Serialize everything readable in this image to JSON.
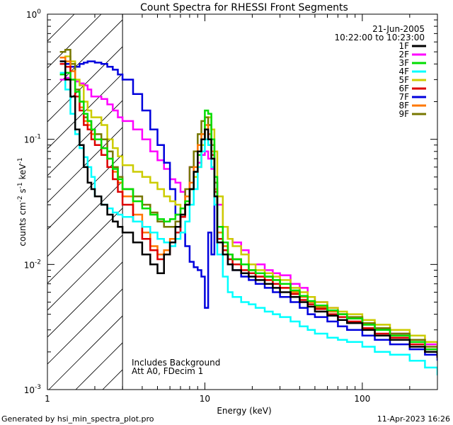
{
  "chart_data": {
    "type": "line",
    "title": "Count Spectra for RHESSI Front Segments",
    "xlabel": "Energy (keV)",
    "ylabel_main": "counts cm",
    "ylabel_sup1": "-2",
    "ylabel_mid": " s",
    "ylabel_sup2": "-1",
    "ylabel_mid2": " keV",
    "ylabel_sup3": "-1",
    "xscale": "log",
    "yscale": "log",
    "xlim": [
      1,
      300
    ],
    "ylim": [
      0.001,
      1
    ],
    "xticks": [
      {
        "value": 1,
        "label": "1"
      },
      {
        "value": 10,
        "label": "10"
      },
      {
        "value": 100,
        "label": "100"
      }
    ],
    "yticks": [
      {
        "value": 0.001,
        "base": "10",
        "exp": "-3"
      },
      {
        "value": 0.01,
        "base": "10",
        "exp": "-2"
      },
      {
        "value": 0.1,
        "base": "10",
        "exp": "-1"
      },
      {
        "value": 1,
        "base": "10",
        "exp": "0"
      }
    ],
    "date": "21-Jun-2005",
    "time_range": "10:22:00 to 10:23:00",
    "annotation_1": "Includes Background",
    "annotation_2": "Att A0, FDecim 1",
    "hatched_region_max_kev": 3,
    "legend": [
      {
        "name": "1F",
        "color": "#000000"
      },
      {
        "name": "2F",
        "color": "#ff00ff"
      },
      {
        "name": "3F",
        "color": "#00dd00"
      },
      {
        "name": "4F",
        "color": "#00ffff"
      },
      {
        "name": "5F",
        "color": "#cccc00"
      },
      {
        "name": "6F",
        "color": "#dd0000"
      },
      {
        "name": "7F",
        "color": "#0000dd"
      },
      {
        "name": "8F",
        "color": "#ff7700"
      },
      {
        "name": "9F",
        "color": "#777700"
      }
    ],
    "series": [
      {
        "name": "2F",
        "color": "#ff00ff",
        "x": [
          1.2,
          1.3,
          1.4,
          1.5,
          1.6,
          1.7,
          1.8,
          1.9,
          2.0,
          2.2,
          2.4,
          2.6,
          2.8,
          3.0,
          3.5,
          4,
          4.5,
          5,
          5.5,
          6,
          6.5,
          7,
          7.5,
          8,
          8.5,
          9,
          9.5,
          10,
          10.5,
          11,
          11.5,
          12,
          13,
          14,
          15,
          17,
          19,
          21,
          24,
          27,
          30,
          35,
          40,
          45,
          50,
          60,
          70,
          80,
          100,
          120,
          150,
          200,
          250,
          300
        ],
        "values": [
          0.3,
          0.31,
          0.3,
          0.29,
          0.28,
          0.27,
          0.25,
          0.22,
          0.22,
          0.21,
          0.19,
          0.17,
          0.15,
          0.14,
          0.12,
          0.1,
          0.08,
          0.068,
          0.058,
          0.048,
          0.045,
          0.038,
          0.035,
          0.06,
          0.05,
          0.065,
          0.075,
          0.08,
          0.07,
          0.058,
          0.045,
          0.03,
          0.02,
          0.016,
          0.015,
          0.013,
          0.01,
          0.01,
          0.009,
          0.0085,
          0.0082,
          0.007,
          0.0065,
          0.0055,
          0.005,
          0.0045,
          0.004,
          0.0037,
          0.0033,
          0.003,
          0.0028,
          0.0025,
          0.0023,
          0.002
        ]
      },
      {
        "name": "7F",
        "color": "#0000dd",
        "x": [
          1.2,
          1.3,
          1.4,
          1.5,
          1.6,
          1.7,
          1.8,
          1.9,
          2.0,
          2.2,
          2.4,
          2.6,
          2.8,
          3.0,
          3.5,
          4,
          4.5,
          5,
          5.5,
          6,
          6.5,
          7,
          7.5,
          8,
          8.5,
          9,
          9.5,
          10,
          10.5,
          11,
          11.5,
          12,
          13,
          14,
          15,
          17,
          19,
          21,
          24,
          27,
          30,
          35,
          40,
          45,
          50,
          60,
          70,
          80,
          100,
          120,
          150,
          200,
          250,
          300
        ],
        "values": [
          0.42,
          0.4,
          0.38,
          0.38,
          0.4,
          0.41,
          0.42,
          0.42,
          0.41,
          0.4,
          0.38,
          0.36,
          0.33,
          0.3,
          0.23,
          0.17,
          0.12,
          0.09,
          0.065,
          0.04,
          0.025,
          0.018,
          0.014,
          0.0105,
          0.0095,
          0.009,
          0.008,
          0.0045,
          0.018,
          0.012,
          0.035,
          0.015,
          0.012,
          0.01,
          0.009,
          0.008,
          0.0075,
          0.007,
          0.0065,
          0.006,
          0.0055,
          0.005,
          0.0045,
          0.004,
          0.0038,
          0.0035,
          0.0032,
          0.003,
          0.0027,
          0.0025,
          0.0023,
          0.0021,
          0.0019,
          0.0017
        ]
      },
      {
        "name": "5F",
        "color": "#cccc00",
        "x": [
          1.2,
          1.3,
          1.4,
          1.5,
          1.6,
          1.7,
          1.8,
          1.9,
          2.0,
          2.2,
          2.4,
          2.6,
          2.8,
          3.0,
          3.5,
          4,
          4.5,
          5,
          5.5,
          6,
          6.5,
          7,
          7.5,
          8,
          8.5,
          9,
          9.5,
          10,
          10.5,
          11,
          11.5,
          12,
          13,
          14,
          15,
          17,
          19,
          21,
          24,
          27,
          30,
          35,
          40,
          45,
          50,
          60,
          70,
          80,
          100,
          120,
          150,
          200,
          250,
          300
        ],
        "values": [
          0.45,
          0.46,
          0.42,
          0.3,
          0.27,
          0.2,
          0.17,
          0.15,
          0.15,
          0.13,
          0.1,
          0.085,
          0.073,
          0.062,
          0.055,
          0.05,
          0.045,
          0.04,
          0.035,
          0.032,
          0.03,
          0.028,
          0.035,
          0.04,
          0.05,
          0.06,
          0.09,
          0.12,
          0.15,
          0.12,
          0.08,
          0.035,
          0.02,
          0.016,
          0.014,
          0.012,
          0.01,
          0.009,
          0.0085,
          0.008,
          0.0075,
          0.0065,
          0.006,
          0.0055,
          0.005,
          0.0045,
          0.0042,
          0.004,
          0.0036,
          0.0033,
          0.003,
          0.0027,
          0.0024,
          0.0022
        ]
      },
      {
        "name": "9F",
        "color": "#777700",
        "x": [
          1.2,
          1.3,
          1.4,
          1.5,
          1.6,
          1.7,
          1.8,
          1.9,
          2.0,
          2.2,
          2.4,
          2.6,
          2.8,
          3.0,
          3.5,
          4,
          4.5,
          5,
          5.5,
          6,
          6.5,
          7,
          7.5,
          8,
          8.5,
          9,
          9.5,
          10,
          10.5,
          11,
          11.5,
          12,
          13,
          14,
          15,
          17,
          19,
          21,
          24,
          27,
          30,
          35,
          40,
          45,
          50,
          60,
          70,
          80,
          100,
          120,
          150,
          200,
          250,
          300
        ],
        "values": [
          0.5,
          0.52,
          0.4,
          0.25,
          0.2,
          0.15,
          0.14,
          0.12,
          0.11,
          0.1,
          0.08,
          0.06,
          0.05,
          0.04,
          0.035,
          0.03,
          0.026,
          0.022,
          0.02,
          0.02,
          0.022,
          0.025,
          0.04,
          0.06,
          0.08,
          0.11,
          0.14,
          0.15,
          0.13,
          0.09,
          0.045,
          0.02,
          0.015,
          0.012,
          0.011,
          0.01,
          0.009,
          0.0085,
          0.008,
          0.0075,
          0.007,
          0.006,
          0.0055,
          0.005,
          0.0045,
          0.0042,
          0.004,
          0.0038,
          0.0034,
          0.0031,
          0.0028,
          0.0025,
          0.0022,
          0.002
        ]
      },
      {
        "name": "8F",
        "color": "#ff7700",
        "x": [
          1.2,
          1.3,
          1.4,
          1.5,
          1.6,
          1.7,
          1.8,
          1.9,
          2.0,
          2.2,
          2.4,
          2.6,
          2.8,
          3.0,
          3.5,
          4,
          4.5,
          5,
          5.5,
          6,
          6.5,
          7,
          7.5,
          8,
          8.5,
          9,
          9.5,
          10,
          10.5,
          11,
          11.5,
          12,
          13,
          14,
          15,
          17,
          19,
          21,
          24,
          27,
          30,
          35,
          40,
          45,
          50,
          60,
          70,
          80,
          100,
          120,
          150,
          200,
          250,
          300
        ],
        "values": [
          0.45,
          0.42,
          0.35,
          0.22,
          0.18,
          0.14,
          0.13,
          0.11,
          0.1,
          0.085,
          0.07,
          0.055,
          0.045,
          0.035,
          0.025,
          0.018,
          0.014,
          0.012,
          0.013,
          0.016,
          0.02,
          0.028,
          0.035,
          0.045,
          0.06,
          0.09,
          0.11,
          0.13,
          0.11,
          0.08,
          0.04,
          0.018,
          0.014,
          0.012,
          0.011,
          0.01,
          0.009,
          0.008,
          0.0075,
          0.007,
          0.0065,
          0.006,
          0.0055,
          0.005,
          0.0046,
          0.0042,
          0.004,
          0.0037,
          0.0033,
          0.003,
          0.0027,
          0.0024,
          0.0021,
          0.0019
        ]
      },
      {
        "name": "6F",
        "color": "#dd0000",
        "x": [
          1.2,
          1.3,
          1.4,
          1.5,
          1.6,
          1.7,
          1.8,
          1.9,
          2.0,
          2.2,
          2.4,
          2.6,
          2.8,
          3.0,
          3.5,
          4,
          4.5,
          5,
          5.5,
          6,
          6.5,
          7,
          7.5,
          8,
          8.5,
          9,
          9.5,
          10,
          10.5,
          11,
          11.5,
          12,
          13,
          14,
          15,
          17,
          19,
          21,
          24,
          27,
          30,
          35,
          40,
          45,
          50,
          60,
          70,
          80,
          100,
          120,
          150,
          200,
          250,
          300
        ],
        "values": [
          0.4,
          0.38,
          0.3,
          0.22,
          0.17,
          0.13,
          0.12,
          0.1,
          0.09,
          0.075,
          0.06,
          0.048,
          0.038,
          0.03,
          0.022,
          0.016,
          0.013,
          0.011,
          0.012,
          0.015,
          0.018,
          0.024,
          0.03,
          0.04,
          0.055,
          0.08,
          0.1,
          0.12,
          0.1,
          0.075,
          0.038,
          0.016,
          0.013,
          0.011,
          0.01,
          0.009,
          0.0085,
          0.008,
          0.0075,
          0.007,
          0.0065,
          0.0058,
          0.0052,
          0.0048,
          0.0044,
          0.004,
          0.0038,
          0.0035,
          0.0031,
          0.0028,
          0.0026,
          0.0023,
          0.002,
          0.0018
        ]
      },
      {
        "name": "3F",
        "color": "#00dd00",
        "x": [
          1.2,
          1.3,
          1.4,
          1.5,
          1.6,
          1.7,
          1.8,
          1.9,
          2.0,
          2.2,
          2.4,
          2.6,
          2.8,
          3.0,
          3.5,
          4,
          4.5,
          5,
          5.5,
          6,
          6.5,
          7,
          7.5,
          8,
          8.5,
          9,
          9.5,
          10,
          10.5,
          11,
          11.5,
          12,
          13,
          14,
          15,
          17,
          19,
          21,
          24,
          27,
          30,
          35,
          40,
          45,
          50,
          60,
          70,
          80,
          100,
          120,
          150,
          200,
          250,
          300
        ],
        "values": [
          0.33,
          0.34,
          0.3,
          0.24,
          0.2,
          0.16,
          0.14,
          0.12,
          0.1,
          0.085,
          0.07,
          0.058,
          0.048,
          0.04,
          0.032,
          0.028,
          0.025,
          0.023,
          0.022,
          0.023,
          0.025,
          0.028,
          0.032,
          0.04,
          0.055,
          0.075,
          0.1,
          0.17,
          0.16,
          0.1,
          0.05,
          0.02,
          0.015,
          0.012,
          0.011,
          0.01,
          0.009,
          0.0085,
          0.008,
          0.0075,
          0.007,
          0.0062,
          0.0056,
          0.0051,
          0.0047,
          0.0043,
          0.004,
          0.0037,
          0.0033,
          0.003,
          0.0027,
          0.0024,
          0.0021,
          0.0019
        ]
      },
      {
        "name": "4F",
        "color": "#00ffff",
        "x": [
          1.2,
          1.3,
          1.4,
          1.5,
          1.6,
          1.7,
          1.8,
          1.9,
          2.0,
          2.2,
          2.4,
          2.6,
          2.8,
          3.0,
          3.5,
          4,
          4.5,
          5,
          5.5,
          6,
          6.5,
          7,
          7.5,
          8,
          8.5,
          9,
          9.5,
          10,
          10.5,
          11,
          11.5,
          12,
          13,
          14,
          15,
          17,
          19,
          21,
          24,
          27,
          30,
          35,
          40,
          45,
          50,
          60,
          70,
          80,
          100,
          120,
          150,
          200,
          250,
          300
        ],
        "values": [
          0.34,
          0.25,
          0.16,
          0.11,
          0.085,
          0.072,
          0.06,
          0.05,
          0.035,
          0.03,
          0.028,
          0.026,
          0.025,
          0.024,
          0.022,
          0.02,
          0.018,
          0.016,
          0.015,
          0.014,
          0.016,
          0.018,
          0.022,
          0.03,
          0.04,
          0.06,
          0.08,
          0.1,
          0.09,
          0.06,
          0.03,
          0.012,
          0.008,
          0.006,
          0.0055,
          0.005,
          0.0048,
          0.0045,
          0.0042,
          0.004,
          0.0038,
          0.0035,
          0.0032,
          0.003,
          0.0028,
          0.0026,
          0.0025,
          0.0024,
          0.0022,
          0.002,
          0.0019,
          0.0017,
          0.0015,
          0.0013
        ]
      },
      {
        "name": "1F",
        "color": "#000000",
        "x": [
          1.2,
          1.3,
          1.4,
          1.5,
          1.6,
          1.7,
          1.8,
          1.9,
          2.0,
          2.2,
          2.4,
          2.6,
          2.8,
          3.0,
          3.5,
          4,
          4.5,
          5,
          5.5,
          6,
          6.5,
          7,
          7.5,
          8,
          8.5,
          9,
          9.5,
          10,
          10.5,
          11,
          11.5,
          12,
          13,
          14,
          15,
          17,
          19,
          21,
          24,
          27,
          30,
          35,
          40,
          45,
          50,
          60,
          70,
          80,
          100,
          120,
          150,
          200,
          250,
          300
        ],
        "values": [
          0.42,
          0.3,
          0.22,
          0.12,
          0.09,
          0.06,
          0.045,
          0.04,
          0.035,
          0.03,
          0.025,
          0.022,
          0.02,
          0.018,
          0.015,
          0.012,
          0.01,
          0.0085,
          0.012,
          0.015,
          0.02,
          0.025,
          0.03,
          0.04,
          0.055,
          0.08,
          0.1,
          0.12,
          0.1,
          0.07,
          0.035,
          0.015,
          0.012,
          0.01,
          0.009,
          0.0085,
          0.008,
          0.0075,
          0.007,
          0.0065,
          0.006,
          0.0055,
          0.005,
          0.0046,
          0.0042,
          0.0039,
          0.0036,
          0.0034,
          0.003,
          0.0027,
          0.0025,
          0.0022,
          0.002,
          0.0018
        ]
      }
    ]
  },
  "footer": {
    "generated_by": "Generated by hsi_min_spectra_plot.pro",
    "timestamp": "11-Apr-2023 16:26"
  }
}
